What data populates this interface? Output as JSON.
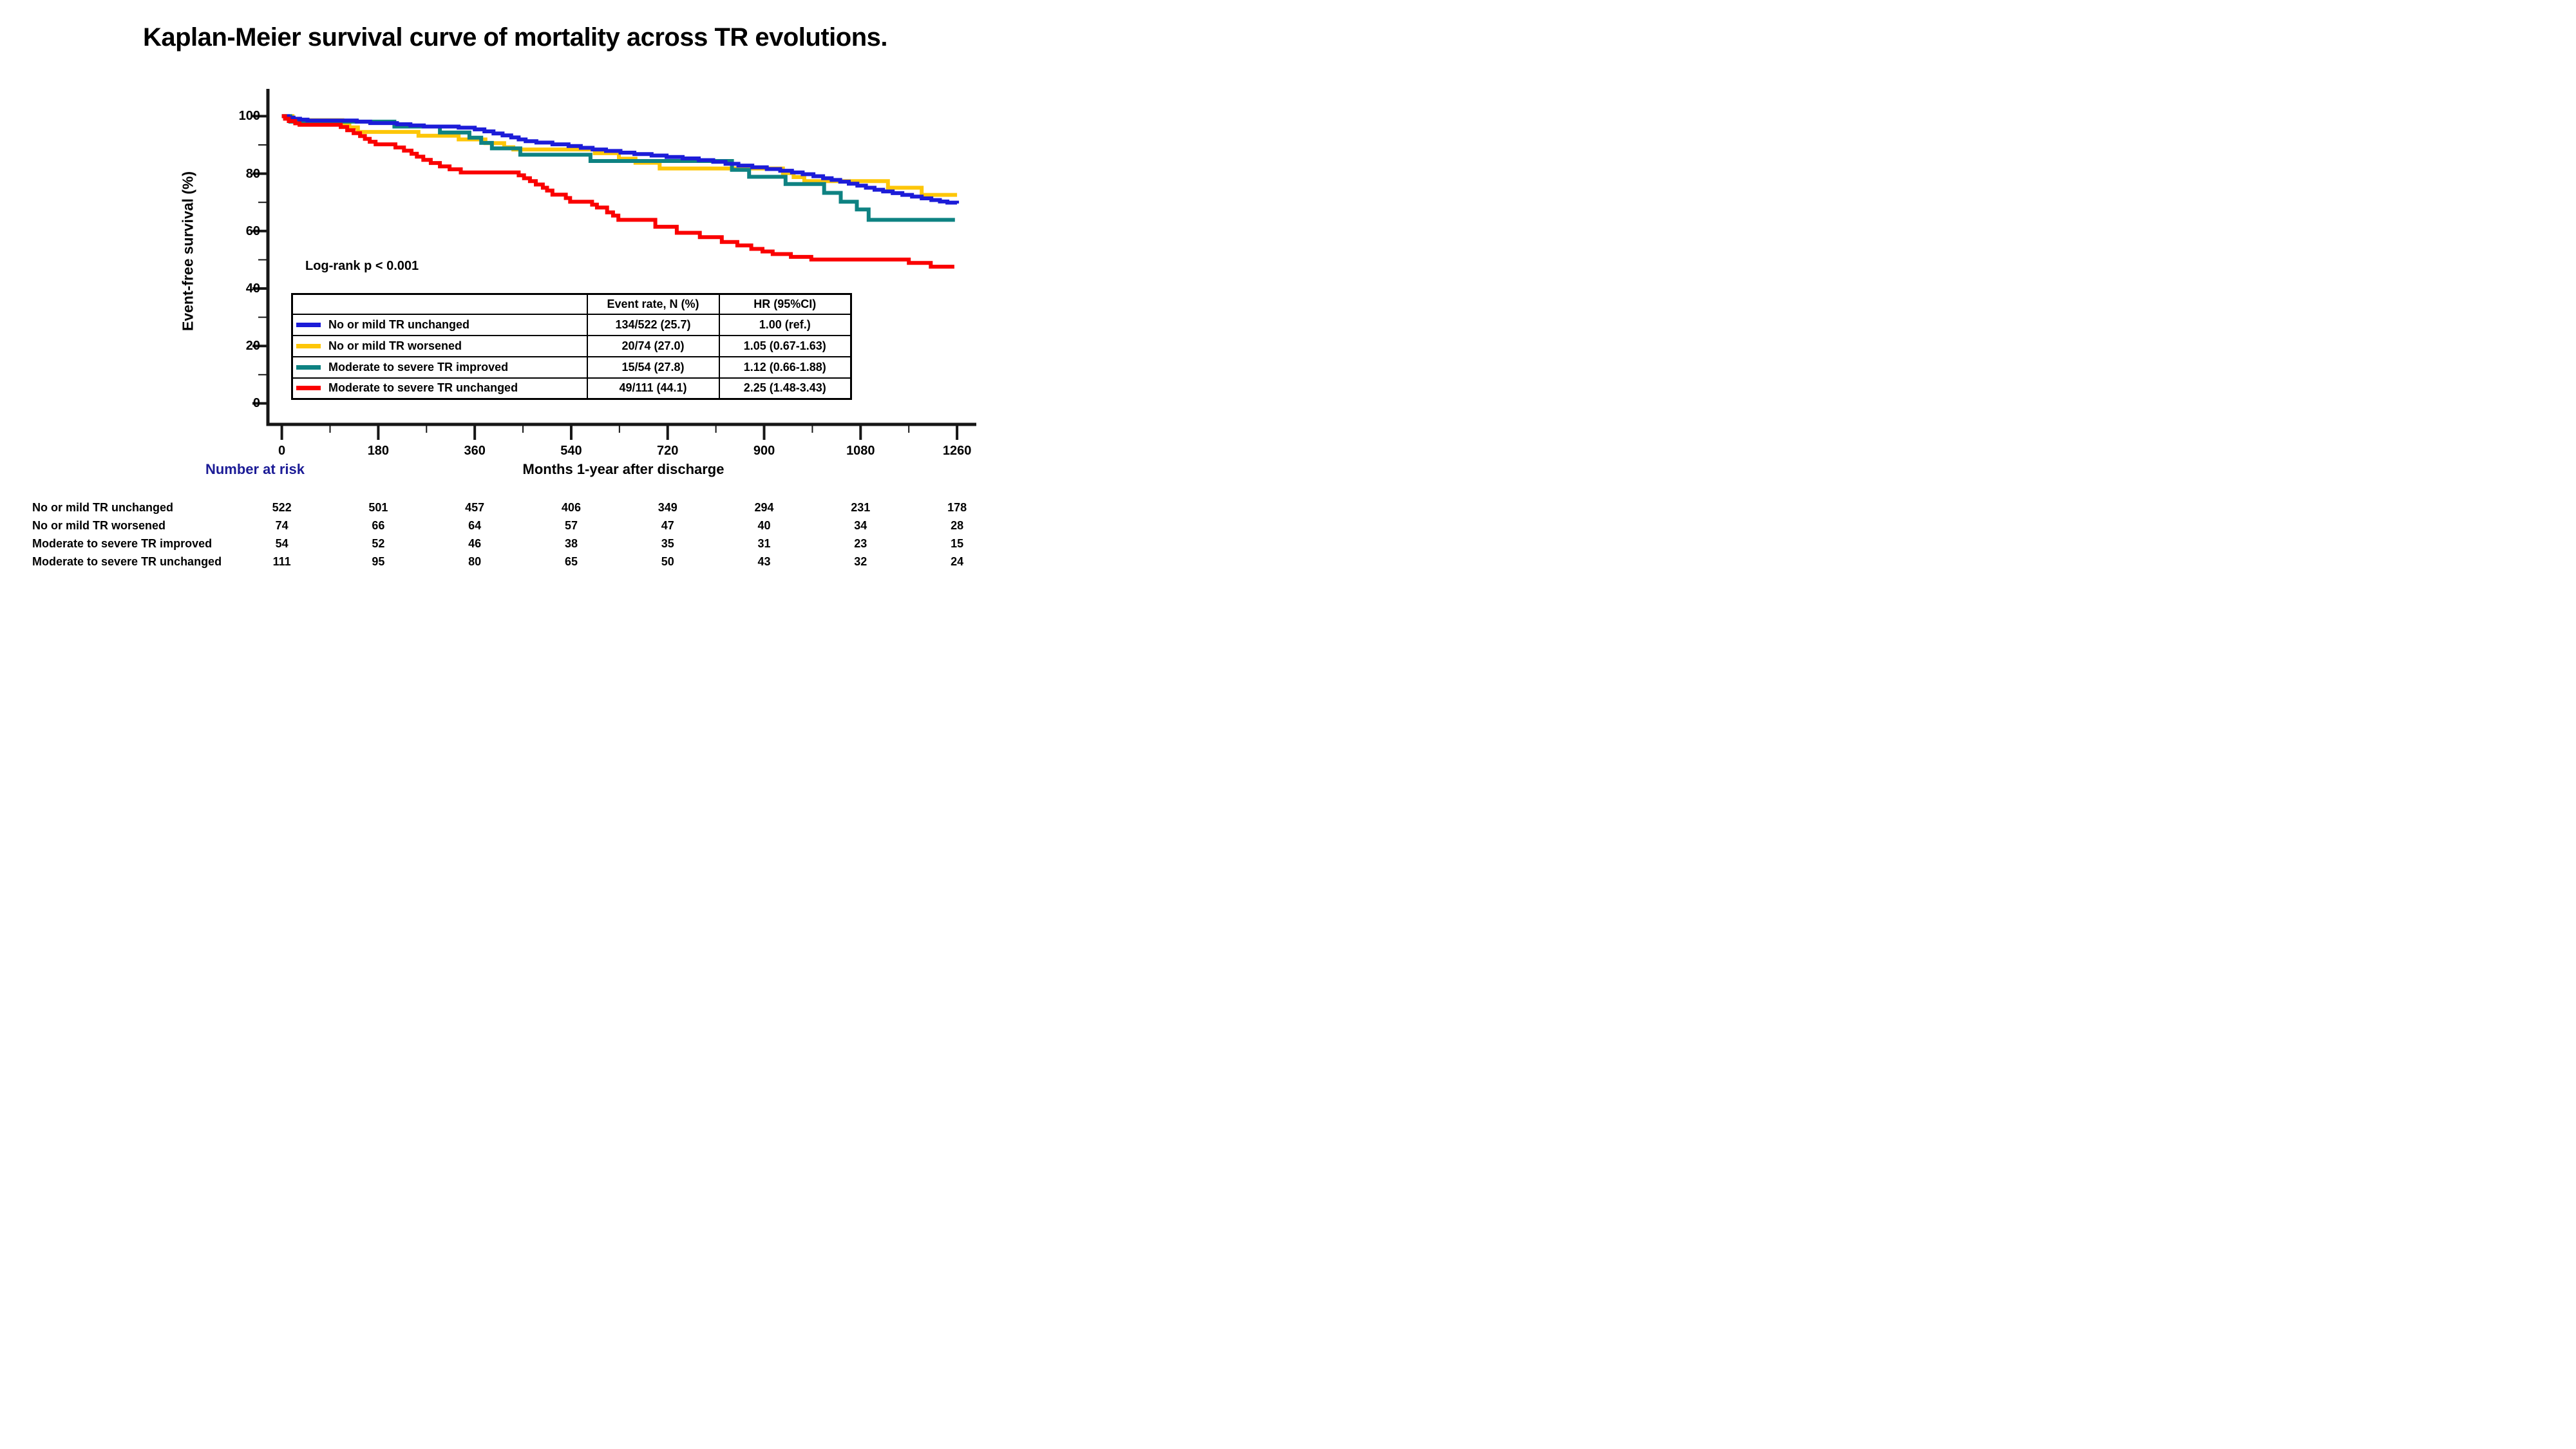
{
  "title": "Kaplan-Meier survival curve of mortality across TR evolutions.",
  "annotation": {
    "log_rank": "Log-rank p < 0.001"
  },
  "y_axis": {
    "label": "Event-free survival (%)"
  },
  "x_axis": {
    "label": "Months 1-year after discharge"
  },
  "legend_table": {
    "headers": {
      "event_rate": "Event rate, N (%)",
      "hr": "HR (95%CI)"
    },
    "rows": [
      {
        "label": "No or mild TR unchanged",
        "event_rate": "134/522 (25.7)",
        "hr": "1.00 (ref.)",
        "color": "#1C1CD8"
      },
      {
        "label": "No or mild TR worsened",
        "event_rate": "20/74 (27.0)",
        "hr": "1.05 (0.67-1.63)",
        "color": "#FDC608"
      },
      {
        "label": "Moderate to severe TR improved",
        "event_rate": "15/54 (27.8)",
        "hr": "1.12 (0.66-1.88)",
        "color": "#0E8282"
      },
      {
        "label": "Moderate to severe TR unchanged",
        "event_rate": "49/111 (44.1)",
        "hr": "2.25 (1.48-3.43)",
        "color": "#FA0000"
      }
    ]
  },
  "number_at_risk": {
    "heading": "Number at risk",
    "heading_color": "#1B1B96",
    "rows": [
      {
        "label": "No or mild TR unchanged",
        "counts": [
          522,
          501,
          457,
          406,
          349,
          294,
          231,
          178
        ]
      },
      {
        "label": "No or mild TR worsened",
        "counts": [
          74,
          66,
          64,
          57,
          47,
          40,
          34,
          28
        ]
      },
      {
        "label": "Moderate to severe TR improved",
        "counts": [
          54,
          52,
          46,
          38,
          35,
          31,
          23,
          15
        ]
      },
      {
        "label": "Moderate to severe TR unchanged",
        "counts": [
          111,
          95,
          80,
          65,
          50,
          43,
          32,
          24
        ]
      }
    ]
  },
  "chart_data": {
    "type": "line",
    "subtype": "kaplan-meier-step",
    "title": "Kaplan-Meier survival curve of mortality across TR evolutions.",
    "xlabel": "Months 1-year after discharge",
    "ylabel": "Event-free survival (%)",
    "xlim": [
      0,
      1260
    ],
    "ylim": [
      0,
      100
    ],
    "grid": false,
    "legend_position": "inset-table",
    "x_major_ticks": [
      0,
      180,
      360,
      540,
      720,
      900,
      1080,
      1260
    ],
    "x_minor_ticks": [
      90,
      270,
      450,
      630,
      810,
      990,
      1170
    ],
    "y_major_ticks": [
      100,
      80,
      60,
      40,
      20,
      0
    ],
    "y_minor_ticks": [
      90,
      70,
      50,
      30,
      10
    ],
    "series": [
      {
        "name": "No or mild TR worsened",
        "color": "#FDC608",
        "n": 74,
        "events": 20,
        "points": [
          [
            0,
            100
          ],
          [
            20,
            98.6
          ],
          [
            113,
            97.5
          ],
          [
            126,
            96.1
          ],
          [
            142,
            94.5
          ],
          [
            255,
            93.2
          ],
          [
            330,
            91.9
          ],
          [
            380,
            90.6
          ],
          [
            415,
            89.2
          ],
          [
            432,
            88.4
          ],
          [
            584,
            87.1
          ],
          [
            629,
            85.2
          ],
          [
            660,
            83.8
          ],
          [
            705,
            81.8
          ],
          [
            935,
            80.2
          ],
          [
            955,
            78.8
          ],
          [
            975,
            77.4
          ],
          [
            1131,
            75.1
          ],
          [
            1194,
            72.6
          ],
          [
            1260,
            72.6
          ]
        ]
      },
      {
        "name": "Moderate to severe TR improved",
        "color": "#0E8282",
        "n": 54,
        "events": 15,
        "points": [
          [
            0,
            100
          ],
          [
            16,
            98.1
          ],
          [
            210,
            96.4
          ],
          [
            295,
            94.3
          ],
          [
            350,
            92.5
          ],
          [
            372,
            90.7
          ],
          [
            392,
            88.8
          ],
          [
            445,
            86.6
          ],
          [
            576,
            84.4
          ],
          [
            840,
            81.3
          ],
          [
            872,
            78.9
          ],
          [
            940,
            76.4
          ],
          [
            1012,
            73.3
          ],
          [
            1043,
            70.2
          ],
          [
            1073,
            67.5
          ],
          [
            1095,
            63.9
          ],
          [
            1256,
            63.9
          ]
        ]
      },
      {
        "name": "No or mild TR unchanged",
        "color": "#1C1CD8",
        "n": 522,
        "events": 134,
        "points": [
          [
            0,
            100
          ],
          [
            12,
            99.5
          ],
          [
            22,
            99.1
          ],
          [
            34,
            98.8
          ],
          [
            48,
            98.5
          ],
          [
            140,
            98.1
          ],
          [
            165,
            97.6
          ],
          [
            215,
            97.2
          ],
          [
            240,
            96.8
          ],
          [
            265,
            96.4
          ],
          [
            330,
            96.0
          ],
          [
            360,
            95.4
          ],
          [
            378,
            94.7
          ],
          [
            395,
            94.0
          ],
          [
            412,
            93.3
          ],
          [
            428,
            92.6
          ],
          [
            442,
            91.9
          ],
          [
            455,
            91.3
          ],
          [
            475,
            90.8
          ],
          [
            505,
            90.2
          ],
          [
            535,
            89.6
          ],
          [
            558,
            89.0
          ],
          [
            580,
            88.4
          ],
          [
            605,
            87.9
          ],
          [
            632,
            87.3
          ],
          [
            658,
            86.8
          ],
          [
            690,
            86.3
          ],
          [
            718,
            85.8
          ],
          [
            748,
            85.3
          ],
          [
            778,
            84.7
          ],
          [
            805,
            84.1
          ],
          [
            828,
            83.4
          ],
          [
            852,
            82.8
          ],
          [
            878,
            82.2
          ],
          [
            905,
            81.6
          ],
          [
            930,
            81.0
          ],
          [
            952,
            80.4
          ],
          [
            972,
            79.8
          ],
          [
            992,
            79.1
          ],
          [
            1010,
            78.4
          ],
          [
            1026,
            77.8
          ],
          [
            1042,
            77.2
          ],
          [
            1058,
            76.5
          ],
          [
            1074,
            75.8
          ],
          [
            1090,
            75.1
          ],
          [
            1106,
            74.4
          ],
          [
            1122,
            73.8
          ],
          [
            1140,
            73.2
          ],
          [
            1158,
            72.6
          ],
          [
            1176,
            72.0
          ],
          [
            1194,
            71.4
          ],
          [
            1212,
            70.8
          ],
          [
            1228,
            70.3
          ],
          [
            1242,
            69.9
          ],
          [
            1260,
            69.6
          ]
        ]
      },
      {
        "name": "Moderate to severe TR unchanged",
        "color": "#FA0000",
        "n": 111,
        "events": 49,
        "points": [
          [
            0,
            100
          ],
          [
            6,
            99.1
          ],
          [
            13,
            98.3
          ],
          [
            25,
            97.5
          ],
          [
            33,
            97.0
          ],
          [
            110,
            96.2
          ],
          [
            122,
            95.1
          ],
          [
            134,
            94.1
          ],
          [
            146,
            93.1
          ],
          [
            155,
            92.1
          ],
          [
            164,
            91.1
          ],
          [
            175,
            90.2
          ],
          [
            212,
            89.1
          ],
          [
            228,
            88.0
          ],
          [
            242,
            86.9
          ],
          [
            252,
            85.9
          ],
          [
            264,
            84.8
          ],
          [
            278,
            83.7
          ],
          [
            295,
            82.5
          ],
          [
            313,
            81.5
          ],
          [
            334,
            80.4
          ],
          [
            442,
            79.4
          ],
          [
            452,
            78.4
          ],
          [
            463,
            77.4
          ],
          [
            474,
            76.2
          ],
          [
            487,
            75.1
          ],
          [
            495,
            74.1
          ],
          [
            505,
            72.7
          ],
          [
            530,
            71.5
          ],
          [
            538,
            70.2
          ],
          [
            579,
            69.2
          ],
          [
            588,
            68.2
          ],
          [
            607,
            66.5
          ],
          [
            618,
            65.4
          ],
          [
            628,
            63.9
          ],
          [
            697,
            61.5
          ],
          [
            737,
            59.4
          ],
          [
            780,
            57.9
          ],
          [
            821,
            56.2
          ],
          [
            850,
            55.0
          ],
          [
            876,
            53.8
          ],
          [
            897,
            52.9
          ],
          [
            916,
            52.0
          ],
          [
            950,
            51.0
          ],
          [
            988,
            50.1
          ],
          [
            1170,
            48.9
          ],
          [
            1211,
            47.6
          ],
          [
            1255,
            47.6
          ]
        ]
      }
    ],
    "annotations": [
      {
        "text": "Log-rank p < 0.001",
        "x_month": 110,
        "y_percent": 47
      }
    ]
  }
}
